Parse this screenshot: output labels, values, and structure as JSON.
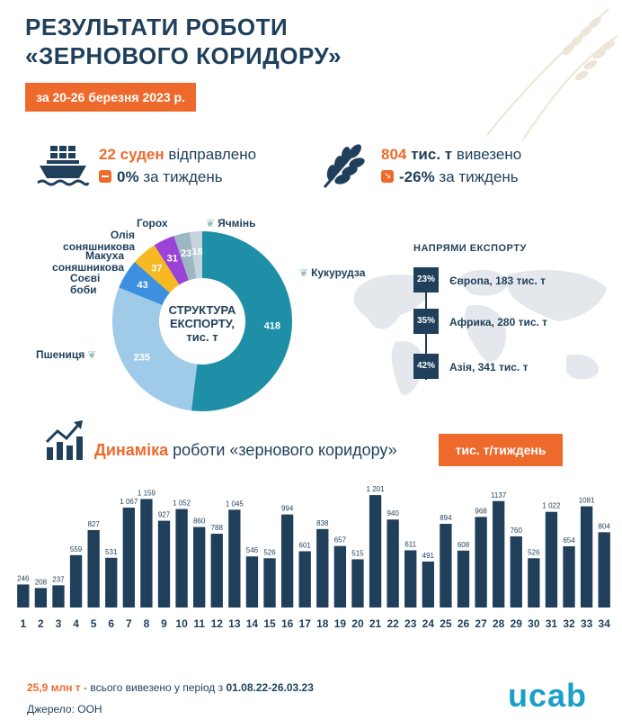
{
  "header": {
    "title_line1": "РЕЗУЛЬТАТИ РОБОТИ",
    "title_line2": "«ЗЕРНОВОГО КОРИДОРУ»",
    "date_range": "за 20-26 березня 2023 р."
  },
  "stats": {
    "ships_value": "22 суден",
    "ships_label": "відправлено",
    "ships_change_value": "0%",
    "ships_change_label": "за тиждень",
    "volume_value": "804",
    "volume_unit": "тис. т",
    "volume_label": "вивезено",
    "volume_change_value": "-26%",
    "volume_change_label": "за тиждень"
  },
  "structure": {
    "center_line1": "СТРУКТУРА",
    "center_line2": "ЕКСПОРТУ,",
    "center_line3": "тис. т"
  },
  "directions": {
    "title": "НАПРЯМИ ЕКСПОРТУ",
    "items": [
      {
        "percent": "23%",
        "label": "Європа, 183 тис. т"
      },
      {
        "percent": "35%",
        "label": "Африка, 280 тис. т"
      },
      {
        "percent": "42%",
        "label": "Азія, 341 тис. т"
      }
    ]
  },
  "dynamics": {
    "title_highlight": "Динаміка",
    "title_rest": "роботи «зернового коридору»",
    "unit": "тис. т/тиждень"
  },
  "footer": {
    "total_value": "25,9 млн т",
    "total_text": "- всього вивезено у період з",
    "period": "01.08.22-26.03.23",
    "source": "Джерело: ООН",
    "logo": "ucab"
  },
  "colors": {
    "accent": "#ee6a2c",
    "navy": "#1f3f5a",
    "bar": "#1f3f5a"
  },
  "chart_data": [
    {
      "type": "pie",
      "title": "СТРУКТУРА ЕКСПОРТУ, тис. т",
      "categories": [
        "Кукурудза",
        "Пшениця",
        "Соєві боби",
        "Макуха соняшникова",
        "Олія соняшникова",
        "Горох",
        "Ячмінь"
      ],
      "values": [
        418,
        235,
        43,
        37,
        31,
        23,
        18
      ],
      "colors": [
        "#1e8fa6",
        "#9fcbe8",
        "#3d8fe0",
        "#f7b921",
        "#9a43d6",
        "#9db6c3",
        "#c4d3dc"
      ],
      "label_colors": [
        "#ffffff",
        "#ffffff",
        "#ffffff",
        "#ffffff",
        "#ffffff",
        "#ffffff",
        "#ffffff"
      ]
    },
    {
      "type": "bar",
      "categories": [
        "1",
        "2",
        "3",
        "4",
        "5",
        "6",
        "7",
        "8",
        "9",
        "10",
        "11",
        "12",
        "13",
        "14",
        "15",
        "16",
        "17",
        "18",
        "19",
        "20",
        "21",
        "22",
        "23",
        "24",
        "25",
        "26",
        "27",
        "28",
        "29",
        "30",
        "31",
        "32",
        "33",
        "34"
      ],
      "values": [
        246,
        208,
        237,
        559,
        827,
        531,
        1067,
        1159,
        927,
        1052,
        860,
        788,
        1045,
        546,
        526,
        994,
        601,
        838,
        657,
        515,
        1201,
        940,
        611,
        491,
        894,
        608,
        968,
        1137,
        760,
        526,
        1022,
        654,
        1081,
        804
      ],
      "value_labels": [
        "246",
        "208",
        "237",
        "559",
        "827",
        "531",
        "1 067",
        "1 159",
        "927",
        "1 052",
        "860",
        "788",
        "1 045",
        "546",
        "526",
        "994",
        "601",
        "838",
        "657",
        "515",
        "1 201",
        "940",
        "611",
        "491",
        "894",
        "608",
        "968",
        "1137",
        "760",
        "526",
        "1 022",
        "654",
        "1081",
        "804"
      ],
      "ylim": [
        0,
        1250
      ]
    }
  ]
}
